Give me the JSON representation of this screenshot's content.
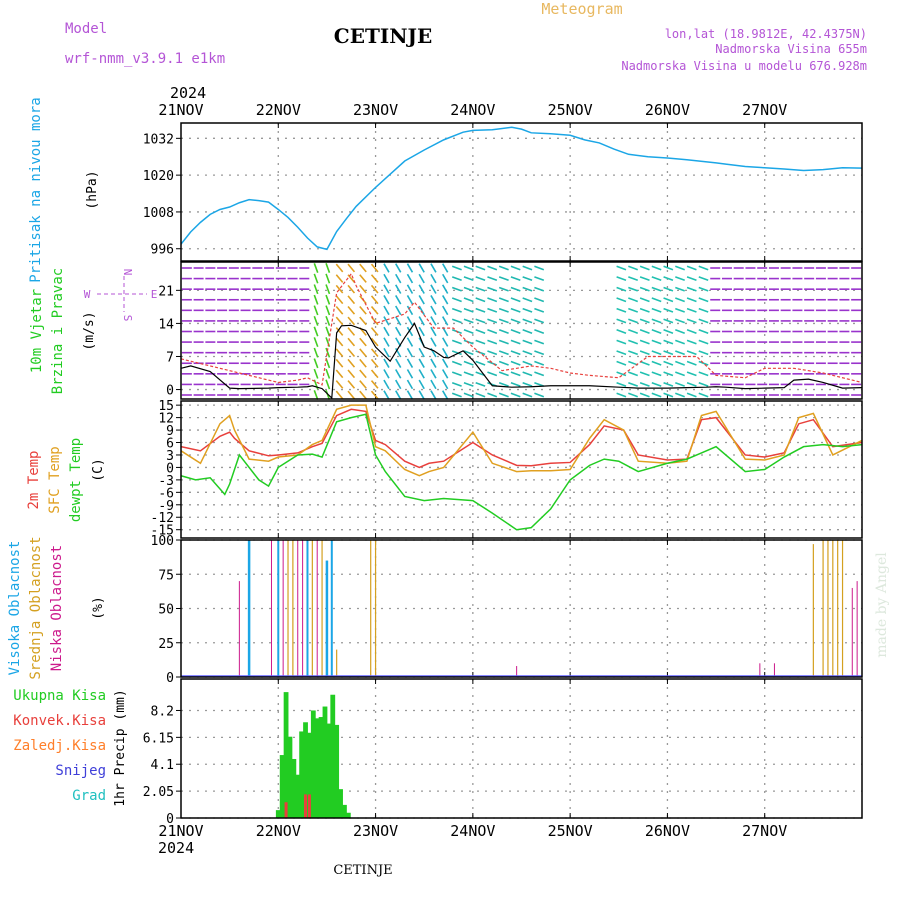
{
  "header": {
    "model_label": "Model",
    "model_name": "wrf-nmm_v3.9.1 e1km",
    "station": "CETINJE",
    "meteogram": "Meteogram",
    "lonlat": "lon,lat (18.9812E, 42.4375N)",
    "elevation": "Nadmorska Visina 655m",
    "model_elevation": "Nadmorska Visina u modelu 676.928m",
    "year_top": "2024",
    "year_bottom": "2024",
    "footer_station": "CETINJE",
    "watermark": "made by Angel"
  },
  "colors": {
    "pressure": "#1ba6e6",
    "temp2m": "#e8403c",
    "sfc_temp": "#e0a020",
    "dewpoint": "#22cc22",
    "high_cloud": "#1ba6e6",
    "mid_cloud": "#d4a020",
    "low_cloud": "#cc1a8c",
    "total_precip": "#22cc22",
    "convective": "#e8403c",
    "freezing": "#ff7f2a",
    "snow": "#3f3fd9",
    "hail": "#20c0c0",
    "wind_speed": "#000000",
    "wind_gust": "#e8403c",
    "grid": "#999999"
  },
  "x_ticks": [
    "21NOV",
    "22NOV",
    "23NOV",
    "24NOV",
    "25NOV",
    "26NOV",
    "27NOV"
  ],
  "panel_labels": {
    "pressure": {
      "line1": "Pritisak na nivou mora",
      "unit": "(hPa)"
    },
    "wind": {
      "line1": "10m Vjetar",
      "line2": "Brzina i Pravac",
      "unit": "(m/s)",
      "dir_n": "N",
      "dir_s": "S",
      "dir_w": "W",
      "dir_e": "E"
    },
    "temp": {
      "t2m": "2m Temp",
      "sfc": "SFC Temp",
      "dew": "dewpt Temp",
      "unit": "(C)"
    },
    "cloud": {
      "high": "Visoka Oblacnost",
      "mid": "Srednja Oblacnost",
      "low": "Niska Oblacnost",
      "unit": "(%)"
    },
    "precip": {
      "total": "Ukupna Kisa",
      "conv": "Konvek.Kisa",
      "freez": "Zaledj.Kisa",
      "snow": "Snijeg",
      "hail": "Grad",
      "unit": "1hr Precip (mm)"
    }
  },
  "chart_data": [
    {
      "type": "line",
      "name": "pressure",
      "ylabel": "Pritisak na nivou mora (hPa)",
      "ylim": [
        992,
        1037
      ],
      "yticks": [
        996,
        1008,
        1020,
        1032
      ],
      "grid": true,
      "x": [
        0,
        0.1,
        0.2,
        0.3,
        0.4,
        0.5,
        0.6,
        0.7,
        0.8,
        0.9,
        1.0,
        1.1,
        1.2,
        1.3,
        1.4,
        1.5,
        1.6,
        1.7,
        1.8,
        2.0,
        2.3,
        2.5,
        2.7,
        2.9,
        3.0,
        3.2,
        3.4,
        3.5,
        3.6,
        3.8,
        4.0,
        4.15,
        4.3,
        4.45,
        4.6,
        4.8,
        5.0,
        5.2,
        5.5,
        5.6,
        5.8,
        6.0,
        6.2,
        6.4,
        6.6,
        6.8,
        7.0
      ],
      "y": [
        997.5,
        1001.5,
        1004.6,
        1007.2,
        1008.8,
        1009.6,
        1011.0,
        1012.0,
        1011.7,
        1011.2,
        1008.8,
        1006.2,
        1003.0,
        999.5,
        996.6,
        995.8,
        1001.6,
        1005.8,
        1009.8,
        1016.0,
        1024.6,
        1028.2,
        1031.5,
        1034.0,
        1034.6,
        1034.8,
        1035.6,
        1035.0,
        1033.8,
        1033.5,
        1033.0,
        1031.5,
        1030.5,
        1028.5,
        1026.8,
        1026.0,
        1025.6,
        1025.0,
        1024.0,
        1023.6,
        1022.8,
        1022.4,
        1022.0,
        1021.5,
        1021.8,
        1022.4,
        1022.3
      ]
    },
    {
      "type": "line",
      "name": "wind",
      "ylabel": "10m Vjetar Brzina i Pravac (m/s)",
      "ylim": [
        -2,
        27
      ],
      "yticks": [
        0,
        7,
        14,
        21
      ],
      "grid": true,
      "series": [
        {
          "name": "speed",
          "x": [
            0,
            0.1,
            0.3,
            0.5,
            0.6,
            0.9,
            1.0,
            1.2,
            1.3,
            1.35,
            1.45,
            1.55,
            1.6,
            1.65,
            1.75,
            1.9,
            2.0,
            2.15,
            2.3,
            2.4,
            2.5,
            2.6,
            2.7,
            2.75,
            2.9,
            3.0,
            3.2,
            3.4,
            3.6,
            3.8,
            4.0,
            4.2,
            4.5,
            4.7,
            5.0,
            5.2,
            5.4,
            5.5,
            5.6,
            5.8,
            6.0,
            6.2,
            6.3,
            6.45,
            6.6,
            6.8,
            7.0
          ],
          "y": [
            4.5,
            5.0,
            3.8,
            0.3,
            0.2,
            0.3,
            0.4,
            0.5,
            0.6,
            0.8,
            0.2,
            -1.8,
            12.0,
            13.5,
            13.6,
            12.5,
            9.0,
            6.0,
            11.0,
            14.0,
            9.0,
            8.2,
            6.8,
            6.7,
            8.2,
            6.2,
            0.8,
            0.5,
            0.6,
            0.8,
            0.8,
            0.8,
            0.5,
            0.3,
            0.3,
            0.4,
            0.5,
            0.6,
            0.5,
            0.2,
            0.3,
            0.4,
            2.0,
            2.2,
            1.5,
            0.3,
            0.4
          ]
        },
        {
          "name": "gust",
          "x": [
            0,
            0.5,
            1.0,
            1.2,
            1.3,
            1.45,
            1.6,
            1.75,
            1.8,
            2.0,
            2.3,
            2.4,
            2.6,
            2.8,
            3.0,
            3.3,
            3.6,
            3.8,
            4.0,
            4.2,
            4.5,
            4.8,
            5.0,
            5.3,
            5.5,
            5.8,
            6.0,
            6.3,
            6.6,
            6.8,
            7.0
          ],
          "y": [
            6.5,
            4.0,
            1.5,
            2.0,
            2.5,
            1.0,
            20.5,
            24.5,
            22.0,
            14.0,
            16.0,
            18.5,
            13.0,
            13.0,
            9.0,
            4.0,
            5.0,
            4.5,
            3.5,
            3.0,
            2.5,
            7.0,
            7.0,
            7.0,
            3.0,
            2.5,
            4.5,
            4.5,
            3.5,
            2.5,
            1.5
          ]
        }
      ]
    },
    {
      "type": "line",
      "name": "temperature",
      "ylabel": "(C)",
      "ylim": [
        -17,
        16
      ],
      "yticks": [
        -15,
        -12,
        -9,
        -6,
        -3,
        0,
        3,
        6,
        9,
        12,
        15
      ],
      "grid": true,
      "series": [
        {
          "name": "2m Temp",
          "x": [
            0,
            0.2,
            0.4,
            0.5,
            0.55,
            0.7,
            0.9,
            1.0,
            1.2,
            1.35,
            1.45,
            1.6,
            1.75,
            1.9,
            2.0,
            2.1,
            2.3,
            2.45,
            2.55,
            2.7,
            3.0,
            3.2,
            3.45,
            3.6,
            3.8,
            4.0,
            4.2,
            4.35,
            4.55,
            4.7,
            5.0,
            5.2,
            5.35,
            5.5,
            5.8,
            6.0,
            6.2,
            6.35,
            6.5,
            6.7,
            7.0
          ],
          "x_note": "days from 21 NOV 00:00",
          "y": [
            5.0,
            4.0,
            7.5,
            8.5,
            7.0,
            4.0,
            2.8,
            3.0,
            3.5,
            5.0,
            5.8,
            12.5,
            14.0,
            13.5,
            6.5,
            5.5,
            1.5,
            0.0,
            1.0,
            1.5,
            6.0,
            3.0,
            0.5,
            0.4,
            1.0,
            1.2,
            5.5,
            10.0,
            9.0,
            3.0,
            1.8,
            2.0,
            11.5,
            12.0,
            3.0,
            2.5,
            3.5,
            10.5,
            11.5,
            5.0,
            6.0
          ]
        },
        {
          "name": "SFC Temp",
          "x": [
            0,
            0.2,
            0.4,
            0.5,
            0.55,
            0.7,
            0.9,
            1.0,
            1.2,
            1.35,
            1.45,
            1.6,
            1.75,
            1.9,
            2.0,
            2.1,
            2.3,
            2.45,
            2.55,
            2.7,
            3.0,
            3.2,
            3.45,
            3.6,
            3.8,
            4.0,
            4.2,
            4.35,
            4.55,
            4.7,
            5.0,
            5.2,
            5.35,
            5.5,
            5.8,
            6.0,
            6.2,
            6.35,
            6.5,
            6.7,
            7.0
          ],
          "y": [
            4.0,
            1.0,
            10.5,
            12.5,
            9.0,
            2.0,
            1.5,
            2.5,
            3.0,
            5.5,
            6.5,
            14.0,
            15.0,
            15.0,
            5.0,
            4.0,
            -0.5,
            -2.0,
            -1.0,
            0.0,
            8.5,
            1.0,
            -1.0,
            -0.8,
            -0.8,
            -0.5,
            7.0,
            11.5,
            9.0,
            1.5,
            1.0,
            1.5,
            12.5,
            13.5,
            2.0,
            1.8,
            3.0,
            12.0,
            13.0,
            3.0,
            6.5
          ]
        },
        {
          "name": "dewpt Temp",
          "x": [
            0,
            0.15,
            0.3,
            0.45,
            0.5,
            0.6,
            0.8,
            0.9,
            1.0,
            1.2,
            1.35,
            1.45,
            1.6,
            1.75,
            1.9,
            2.0,
            2.1,
            2.3,
            2.5,
            2.7,
            3.0,
            3.2,
            3.45,
            3.6,
            3.8,
            4.0,
            4.2,
            4.35,
            4.5,
            4.7,
            5.0,
            5.2,
            5.35,
            5.5,
            5.8,
            6.0,
            6.2,
            6.4,
            6.6,
            6.8,
            7.0
          ],
          "y": [
            -2.0,
            -3.0,
            -2.5,
            -6.5,
            -4.0,
            3.0,
            -3.0,
            -4.5,
            0.0,
            3.0,
            3.2,
            2.5,
            11.0,
            12.0,
            12.8,
            3.0,
            -1.0,
            -7.0,
            -8.0,
            -7.5,
            -8.0,
            -11.0,
            -15.0,
            -14.5,
            -10.0,
            -3.0,
            0.5,
            2.0,
            1.5,
            -1.0,
            1.0,
            2.0,
            3.5,
            5.0,
            -1.0,
            -0.5,
            2.5,
            5.0,
            5.5,
            5.0,
            5.5
          ]
        }
      ]
    },
    {
      "type": "bar",
      "name": "cloud",
      "ylabel": "(%)",
      "ylim": [
        0,
        100
      ],
      "yticks": [
        0,
        25,
        50,
        75,
        100
      ],
      "grid": true,
      "series": [
        {
          "name": "Visoka Oblacnost",
          "bars": [
            [
              0.7,
              100,
              2.5
            ],
            [
              1.0,
              100,
              2
            ],
            [
              1.3,
              100,
              2
            ],
            [
              1.5,
              85,
              2.5
            ],
            [
              1.55,
              100,
              2
            ]
          ]
        },
        {
          "name": "Srednja Oblacnost",
          "bars": [
            [
              1.1,
              100,
              1.2
            ],
            [
              1.15,
              100,
              1.2
            ],
            [
              1.35,
              100,
              1.2
            ],
            [
              1.45,
              100,
              1.2
            ],
            [
              1.6,
              20,
              1.2
            ],
            [
              1.95,
              100,
              1.2
            ],
            [
              2.0,
              100,
              1.2
            ],
            [
              6.5,
              97,
              1.2
            ],
            [
              6.6,
              100,
              1.2
            ],
            [
              6.65,
              100,
              1.2
            ],
            [
              6.7,
              100,
              1.2
            ],
            [
              6.75,
              100,
              1.2
            ],
            [
              6.8,
              100,
              1.2
            ]
          ]
        },
        {
          "name": "Niska Oblacnost",
          "bars": [
            [
              0.6,
              70,
              1
            ],
            [
              0.93,
              100,
              1
            ],
            [
              1.05,
              100,
              1
            ],
            [
              1.2,
              100,
              1
            ],
            [
              1.25,
              100,
              1
            ],
            [
              1.4,
              100,
              1
            ],
            [
              3.45,
              8,
              1
            ],
            [
              5.95,
              10,
              1
            ],
            [
              6.1,
              10,
              1
            ],
            [
              6.9,
              65,
              1
            ],
            [
              6.95,
              70,
              1
            ]
          ]
        }
      ]
    },
    {
      "type": "bar",
      "name": "precipitation",
      "ylabel": "1hr Precip (mm)",
      "ylim": [
        0,
        10.6
      ],
      "yticks": [
        0,
        2.05,
        4.1,
        6.15,
        8.2
      ],
      "grid": true,
      "series": [
        {
          "name": "Ukupna Kisa",
          "x": [
            1.0,
            1.04,
            1.08,
            1.12,
            1.16,
            1.2,
            1.24,
            1.28,
            1.32,
            1.36,
            1.4,
            1.44,
            1.48,
            1.52,
            1.56,
            1.6,
            1.64,
            1.68,
            1.72
          ],
          "values": [
            0.6,
            4.8,
            9.6,
            6.2,
            4.5,
            3.3,
            6.6,
            7.3,
            6.5,
            8.2,
            7.6,
            7.7,
            8.5,
            7.2,
            9.4,
            7.1,
            2.2,
            1.0,
            0.4
          ]
        },
        {
          "name": "Konvek.Kisa",
          "x": [
            1.08,
            1.28,
            1.32
          ],
          "values": [
            1.2,
            1.8,
            1.8
          ]
        }
      ]
    }
  ]
}
